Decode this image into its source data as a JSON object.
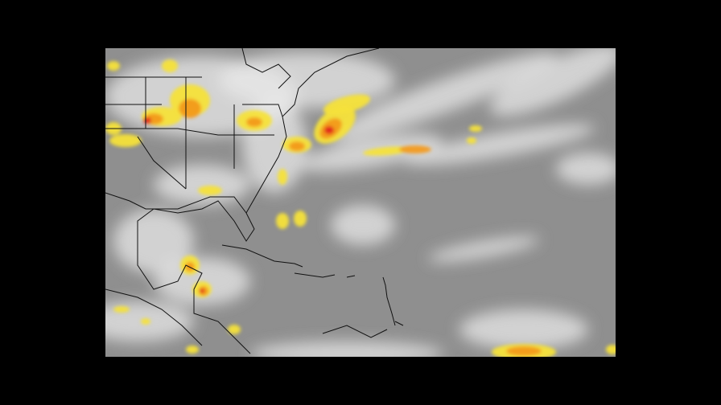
{
  "imagery": {
    "kind": "enhanced infrared satellite image",
    "colors": {
      "background": "#000000",
      "clear_sky": "#8f8f8f",
      "cloud": "#e8e8e8",
      "cold_top_yellow": "#f5e23a",
      "cold_top_orange": "#f39a1c",
      "cold_top_red": "#e0201a",
      "borders": "#111111"
    }
  }
}
